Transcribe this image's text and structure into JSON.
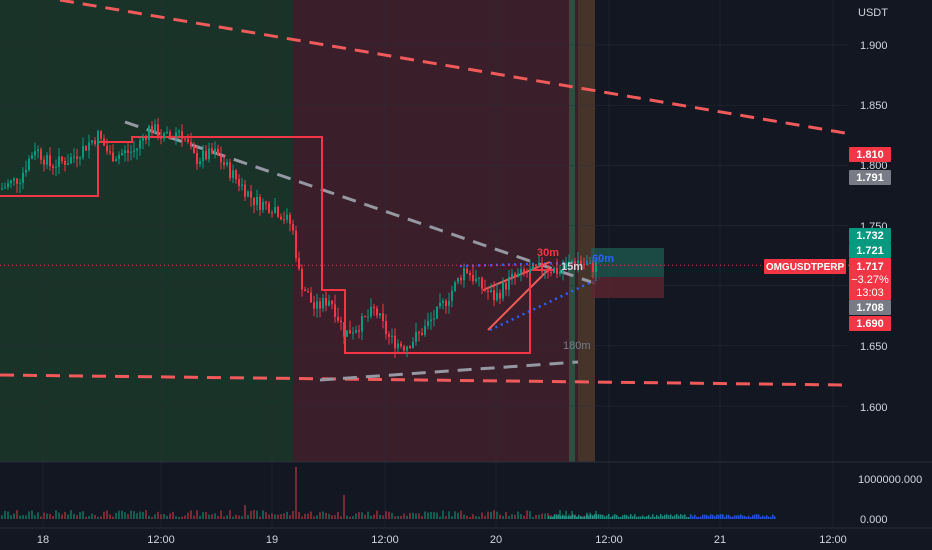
{
  "chart_data": {
    "type": "candlestick",
    "symbol_label": "OMGUSDTPERP",
    "currency_label": "USDT",
    "y_ticks": [
      "1.900",
      "1.850",
      "1.800",
      "1.750",
      "1.650",
      "1.600"
    ],
    "x_ticks": [
      "18",
      "12:00",
      "19",
      "12:00",
      "20",
      "12:00",
      "21",
      "12:00"
    ],
    "ylim": [
      1.575,
      1.935
    ],
    "price_labels": [
      {
        "text": "1.810",
        "value": 1.81,
        "color": "#f23645"
      },
      {
        "text": "1.791",
        "value": 1.791,
        "color": "#787b86"
      },
      {
        "text": "1.732",
        "value": 1.732,
        "color": "#089981"
      },
      {
        "text": "1.721",
        "value": 1.721,
        "color": "#089981"
      },
      {
        "text": "1.708",
        "value": 1.708,
        "color": "#787b86"
      },
      {
        "text": "1.690",
        "value": 1.69,
        "color": "#f23645"
      }
    ],
    "current_price": {
      "value": 1.717,
      "price_text": "1.717",
      "change_text": "−3.27%",
      "countdown_text": "13:03",
      "color": "#f23645"
    },
    "volume_axis_labels": [
      "1000000.000",
      "0.000"
    ],
    "annotations": [
      {
        "text": "30m",
        "color": "#f23645"
      },
      {
        "text": "15m",
        "color": "#d1d4dc"
      },
      {
        "text": "60m",
        "color": "#2962ff"
      },
      {
        "text": "180m",
        "color": "#787b86"
      }
    ],
    "colors": {
      "background": "#131722",
      "up": "#089981",
      "down": "#f23645",
      "zone_green": "#1b3a2e",
      "zone_red": "#3a1f2a",
      "grid": "#1e222d",
      "text": "#d1d4dc"
    },
    "grid": true
  }
}
